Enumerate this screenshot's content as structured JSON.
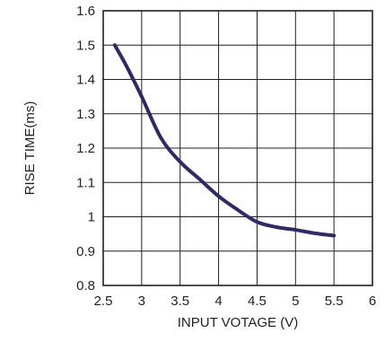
{
  "chart_data": {
    "type": "line",
    "title": "",
    "xlabel": "INPUT VOTAGE (V)",
    "ylabel": "RISE TIME(ms)",
    "xlim": [
      2.5,
      6
    ],
    "ylim": [
      0.8,
      1.6
    ],
    "x_ticks": [
      "2.5",
      "3",
      "3.5",
      "4",
      "4.5",
      "5",
      "5.5",
      "6"
    ],
    "y_ticks": [
      "0.8",
      "0.9",
      "1",
      "1.1",
      "1.2",
      "1.3",
      "1.4",
      "1.5",
      "1.6"
    ],
    "x_tick_values": [
      2.5,
      3,
      3.5,
      4,
      4.5,
      5,
      5.5,
      6
    ],
    "y_tick_values": [
      0.8,
      0.9,
      1.0,
      1.1,
      1.2,
      1.3,
      1.4,
      1.5,
      1.6
    ],
    "grid": true,
    "series": [
      {
        "x": [
          2.65,
          2.8,
          3.0,
          3.25,
          3.5,
          3.75,
          4.0,
          4.25,
          4.5,
          4.75,
          5.0,
          5.25,
          5.5
        ],
        "y": [
          1.5,
          1.44,
          1.35,
          1.23,
          1.16,
          1.11,
          1.06,
          1.02,
          0.985,
          0.97,
          0.962,
          0.952,
          0.945
        ]
      }
    ],
    "colors": {
      "line": "#2e2a66",
      "grid": "#231f20",
      "text": "#231f20"
    }
  }
}
